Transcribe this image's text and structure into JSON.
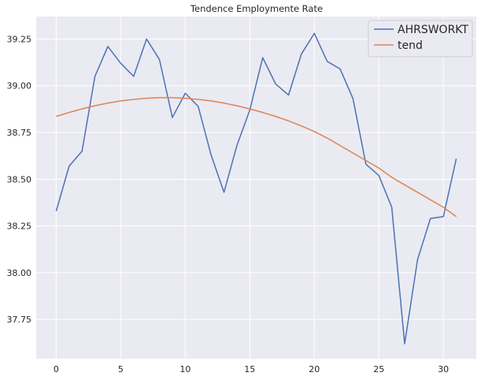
{
  "chart_data": {
    "type": "line",
    "title": "Tendence Employmente Rate",
    "xlabel": "",
    "ylabel": "",
    "xlim": [
      -1.55,
      32.55
    ],
    "ylim": [
      37.54,
      39.37
    ],
    "x_ticks": [
      0,
      5,
      10,
      15,
      20,
      25,
      30
    ],
    "y_ticks": [
      37.75,
      38.0,
      38.25,
      38.5,
      38.75,
      39.0,
      39.25
    ],
    "y_tick_labels": [
      "37.75",
      "38.00",
      "38.25",
      "38.50",
      "38.75",
      "39.00",
      "39.25"
    ],
    "grid": true,
    "legend_position": "top-right",
    "x": [
      0,
      1,
      2,
      3,
      4,
      5,
      6,
      7,
      8,
      9,
      10,
      11,
      12,
      13,
      14,
      15,
      16,
      17,
      18,
      19,
      20,
      21,
      22,
      23,
      24,
      25,
      26,
      27,
      28,
      29,
      30,
      31
    ],
    "series": [
      {
        "name": "AHRSWORKT",
        "color": "#4c72b0",
        "values": [
          38.33,
          38.57,
          38.65,
          39.05,
          39.21,
          39.12,
          39.05,
          39.25,
          39.14,
          38.83,
          38.96,
          38.89,
          38.63,
          38.43,
          38.68,
          38.87,
          39.15,
          39.01,
          38.95,
          39.17,
          39.28,
          39.13,
          39.09,
          38.93,
          38.58,
          38.52,
          38.35,
          37.62,
          38.07,
          38.29,
          38.3,
          38.61
        ]
      },
      {
        "name": "tend",
        "color": "#dd8452",
        "values": [
          38.836,
          38.857,
          38.876,
          38.893,
          38.907,
          38.919,
          38.927,
          38.933,
          38.936,
          38.936,
          38.933,
          38.927,
          38.919,
          38.907,
          38.893,
          38.876,
          38.857,
          38.836,
          38.812,
          38.785,
          38.755,
          38.72,
          38.68,
          38.64,
          38.6,
          38.56,
          38.51,
          38.47,
          38.43,
          38.39,
          38.35,
          38.3
        ]
      }
    ]
  }
}
